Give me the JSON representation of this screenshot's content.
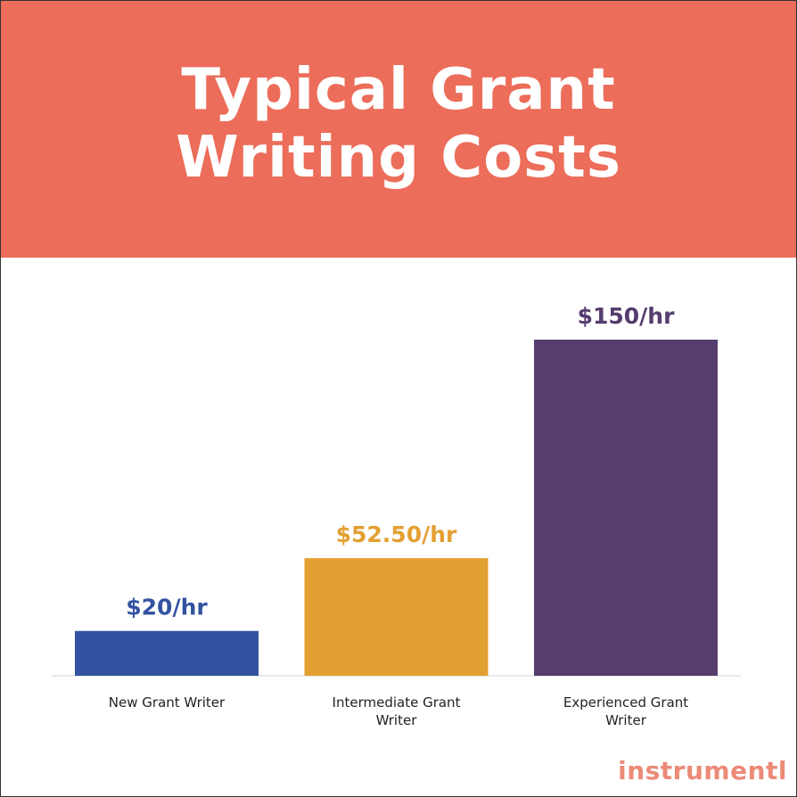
{
  "chart_data": {
    "type": "bar",
    "title": "Typical Grant Writing Costs",
    "categories": [
      "New Grant Writer",
      "Intermediate Grant Writer",
      "Experienced Grant Writer"
    ],
    "values": [
      20,
      52.5,
      150
    ],
    "value_labels": [
      "$20/hr",
      "$52.50/hr",
      "$150/hr"
    ],
    "colors": [
      "#3353a1",
      "#e3a032",
      "#553d6e"
    ]
  },
  "brand": "instrumentl"
}
